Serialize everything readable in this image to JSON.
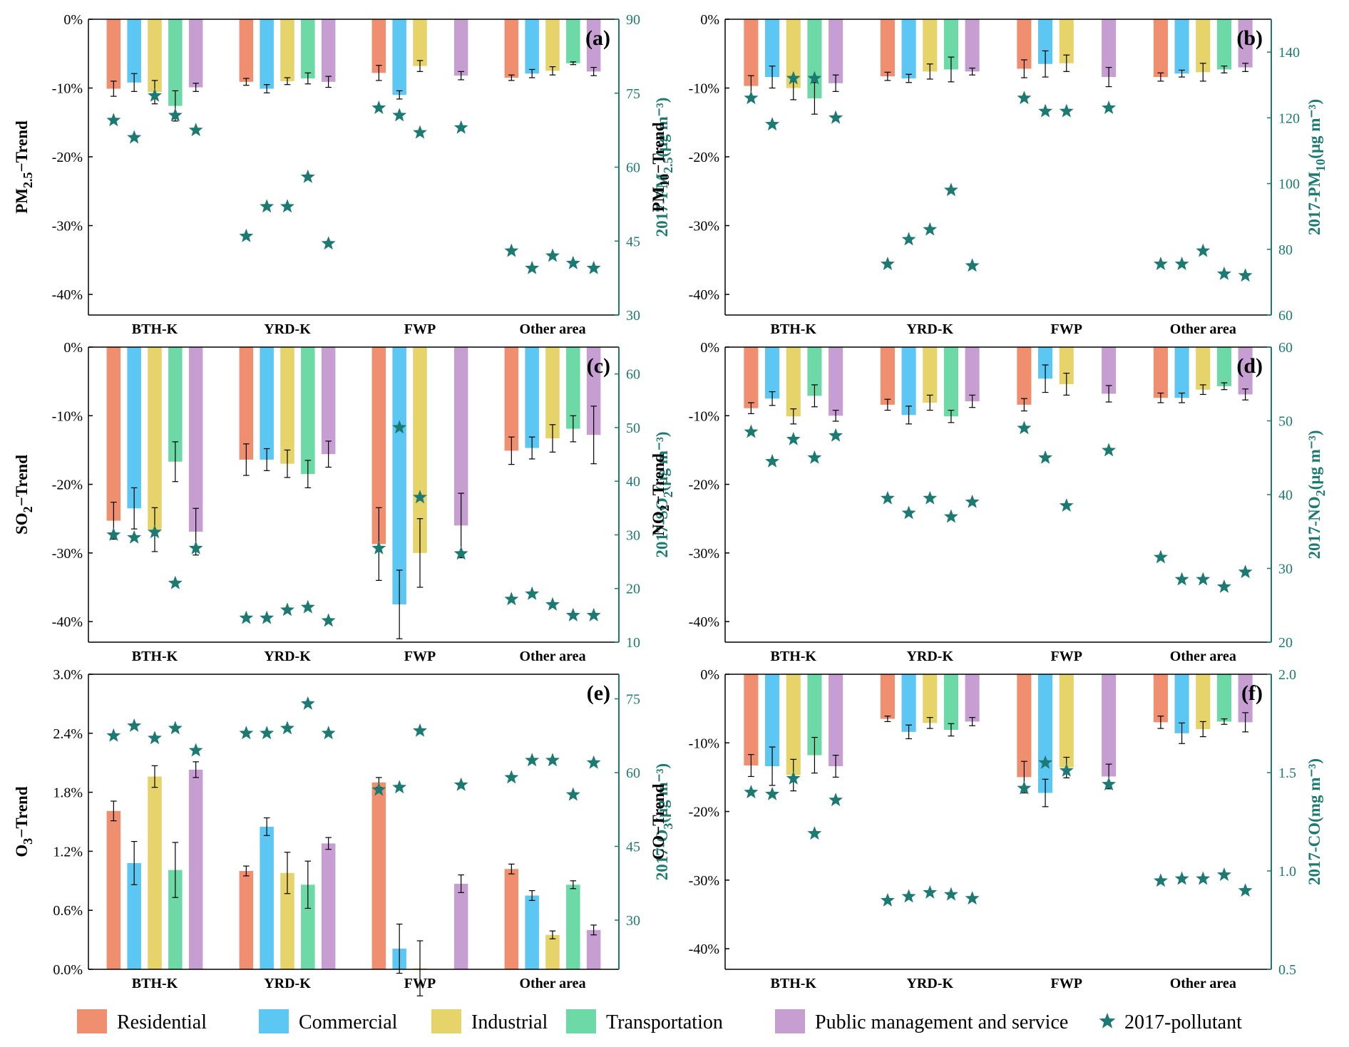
{
  "colors": {
    "series": [
      "#F08E70",
      "#5CC7F2",
      "#E6D36A",
      "#6DD9A6",
      "#C79ED2"
    ],
    "pollutant": "#1D7A72",
    "axis": "#000000"
  },
  "legend": {
    "items": [
      "Residential",
      "Commercial",
      "Industrial",
      "Transportation",
      "Public management and service",
      "2017-pollutant"
    ]
  },
  "chart_data": [
    {
      "type": "bar",
      "panel": "(a)",
      "ylabel_main": "PM",
      "ylabel_sub": "2.5",
      "ylabel_tail": "−Trend",
      "y2label_main": "2017-PM",
      "y2label_sub": "2.5",
      "y2label_tail": "(μg m⁻³)",
      "categories": [
        "BTH-K",
        "YRD-K",
        "FWP",
        "Other area"
      ],
      "ylim": [
        -43,
        0
      ],
      "yticks": [
        0,
        -10,
        -20,
        -30,
        -40
      ],
      "ytick_labels": [
        "0%",
        "-10%",
        "-20%",
        "-30%",
        "-40%"
      ],
      "y2lim": [
        30,
        90
      ],
      "y2ticks": [
        30,
        45,
        60,
        75,
        90
      ],
      "y2tick_labels": [
        "30",
        "45",
        "60",
        "75",
        "90"
      ],
      "series": [
        {
          "name": "Residential",
          "values": [
            -10.1,
            -9.1,
            -7.8,
            -8.5
          ],
          "errors": [
            1.1,
            0.5,
            1.1,
            0.4
          ]
        },
        {
          "name": "Commercial",
          "values": [
            -9.2,
            -10.1,
            -11.0,
            -7.9
          ],
          "errors": [
            1.3,
            0.6,
            0.6,
            0.6
          ]
        },
        {
          "name": "Industrial",
          "values": [
            -10.6,
            -9.0,
            -6.8,
            -7.5
          ],
          "errors": [
            1.7,
            0.5,
            0.8,
            0.6
          ]
        },
        {
          "name": "Transportation",
          "values": [
            -12.6,
            -8.6,
            null,
            -6.4
          ],
          "errors": [
            2.2,
            0.8,
            null,
            0.2
          ]
        },
        {
          "name": "Public management and service",
          "values": [
            -9.9,
            -9.1,
            -8.2,
            -7.6
          ],
          "errors": [
            0.6,
            0.8,
            0.6,
            0.6
          ]
        }
      ],
      "pollutant": [
        [
          69.5,
          66.0,
          74.5,
          70.5,
          67.5
        ],
        [
          46.0,
          52.0,
          52.0,
          58.0,
          44.5
        ],
        [
          72.0,
          70.5,
          67.0,
          null,
          68.0
        ],
        [
          43.0,
          39.5,
          42.0,
          40.5,
          39.5
        ]
      ]
    },
    {
      "type": "bar",
      "panel": "(b)",
      "ylabel_main": "PM",
      "ylabel_sub": "10",
      "ylabel_tail": "−Trend",
      "y2label_main": "2017-PM",
      "y2label_sub": "10",
      "y2label_tail": "(μg m⁻³)",
      "categories": [
        "BTH-K",
        "YRD-K",
        "FWP",
        "Other area"
      ],
      "ylim": [
        -43,
        0
      ],
      "yticks": [
        0,
        -10,
        -20,
        -30,
        -40
      ],
      "ytick_labels": [
        "0%",
        "-10%",
        "-20%",
        "-30%",
        "-40%"
      ],
      "y2lim": [
        60,
        150
      ],
      "y2ticks": [
        60,
        80,
        100,
        120,
        140
      ],
      "y2tick_labels": [
        "60",
        "80",
        "100",
        "120",
        "140"
      ],
      "series": [
        {
          "name": "Residential",
          "values": [
            -9.7,
            -8.3,
            -7.2,
            -8.4
          ],
          "errors": [
            1.5,
            0.6,
            1.3,
            0.6
          ]
        },
        {
          "name": "Commercial",
          "values": [
            -8.4,
            -8.6,
            -6.5,
            -7.9
          ],
          "errors": [
            1.6,
            0.6,
            1.9,
            0.5
          ]
        },
        {
          "name": "Industrial",
          "values": [
            -10.0,
            -7.6,
            -6.4,
            -7.7
          ],
          "errors": [
            1.7,
            1.1,
            1.2,
            1.3
          ]
        },
        {
          "name": "Transportation",
          "values": [
            -11.5,
            -7.3,
            null,
            -7.3
          ],
          "errors": [
            2.3,
            1.8,
            null,
            0.5
          ]
        },
        {
          "name": "Public management and service",
          "values": [
            -9.3,
            -7.6,
            -8.4,
            -7.0
          ],
          "errors": [
            1.2,
            0.5,
            1.4,
            0.6
          ]
        }
      ],
      "pollutant": [
        [
          126.0,
          118.0,
          132.0,
          132.0,
          120.0
        ],
        [
          75.5,
          83.0,
          86.0,
          98.0,
          75.0
        ],
        [
          126.0,
          122.0,
          122.0,
          null,
          123.0
        ],
        [
          75.5,
          75.5,
          79.5,
          72.5,
          72.0
        ]
      ]
    },
    {
      "type": "bar",
      "panel": "(c)",
      "ylabel_main": "SO",
      "ylabel_sub": "2",
      "ylabel_tail": "−Trend",
      "y2label_main": "2017-SO",
      "y2label_sub": "2",
      "y2label_tail": "(μg m⁻³)",
      "categories": [
        "BTH-K",
        "YRD-K",
        "FWP",
        "Other area"
      ],
      "ylim": [
        -43,
        0
      ],
      "yticks": [
        0,
        -10,
        -20,
        -30,
        -40
      ],
      "ytick_labels": [
        "0%",
        "-10%",
        "-20%",
        "-30%",
        "-40%"
      ],
      "y2lim": [
        10,
        65
      ],
      "y2ticks": [
        10,
        20,
        30,
        40,
        50,
        60
      ],
      "y2tick_labels": [
        "10",
        "20",
        "30",
        "40",
        "50",
        "60"
      ],
      "series": [
        {
          "name": "Residential",
          "values": [
            -25.3,
            -16.4,
            -28.7,
            -15.1
          ],
          "errors": [
            2.7,
            2.3,
            5.3,
            2.0
          ]
        },
        {
          "name": "Commercial",
          "values": [
            -23.5,
            -16.4,
            -37.5,
            -14.7
          ],
          "errors": [
            3.0,
            1.6,
            5.0,
            1.6
          ]
        },
        {
          "name": "Industrial",
          "values": [
            -26.6,
            -17.0,
            -30.0,
            -13.3
          ],
          "errors": [
            3.2,
            2.0,
            5.0,
            2.0
          ]
        },
        {
          "name": "Transportation",
          "values": [
            -16.7,
            -18.5,
            null,
            -11.9
          ],
          "errors": [
            2.9,
            2.0,
            null,
            1.9
          ]
        },
        {
          "name": "Public management and service",
          "values": [
            -26.9,
            -15.6,
            -26.0,
            -12.8
          ],
          "errors": [
            3.4,
            1.9,
            4.7,
            4.2
          ]
        }
      ],
      "pollutant": [
        [
          30.0,
          29.5,
          30.5,
          21.0,
          27.5
        ],
        [
          14.5,
          14.5,
          16.0,
          16.5,
          14.0
        ],
        [
          27.5,
          50.0,
          37.0,
          null,
          26.5
        ],
        [
          18.0,
          19.0,
          17.0,
          15.0,
          15.0
        ]
      ]
    },
    {
      "type": "bar",
      "panel": "(d)",
      "ylabel_main": "NO",
      "ylabel_sub": "2",
      "ylabel_tail": "−Trend",
      "y2label_main": "2017-NO",
      "y2label_sub": "2",
      "y2label_tail": "(μg m⁻³)",
      "categories": [
        "BTH-K",
        "YRD-K",
        "FWP",
        "Other area"
      ],
      "ylim": [
        -43,
        0
      ],
      "yticks": [
        0,
        -10,
        -20,
        -30,
        -40
      ],
      "ytick_labels": [
        "0%",
        "-10%",
        "-20%",
        "-30%",
        "-40%"
      ],
      "y2lim": [
        20,
        60
      ],
      "y2ticks": [
        20,
        30,
        40,
        50,
        60
      ],
      "y2tick_labels": [
        "20",
        "30",
        "40",
        "50",
        "60"
      ],
      "series": [
        {
          "name": "Residential",
          "values": [
            -8.9,
            -8.4,
            -8.4,
            -7.4
          ],
          "errors": [
            0.8,
            0.8,
            0.9,
            0.7
          ]
        },
        {
          "name": "Commercial",
          "values": [
            -7.5,
            -9.9,
            -4.6,
            -7.4
          ],
          "errors": [
            1.0,
            1.3,
            2.0,
            0.7
          ]
        },
        {
          "name": "Industrial",
          "values": [
            -10.1,
            -8.1,
            -5.4,
            -6.2
          ],
          "errors": [
            1.1,
            1.1,
            1.6,
            0.7
          ]
        },
        {
          "name": "Transportation",
          "values": [
            -7.1,
            -10.1,
            null,
            -5.7
          ],
          "errors": [
            1.6,
            0.9,
            null,
            0.5
          ]
        },
        {
          "name": "Public management and service",
          "values": [
            -10.0,
            -7.9,
            -6.8,
            -6.9
          ],
          "errors": [
            0.8,
            0.9,
            1.2,
            0.8
          ]
        }
      ],
      "pollutant": [
        [
          48.5,
          44.5,
          47.5,
          45.0,
          48.0
        ],
        [
          39.5,
          37.5,
          39.5,
          37.0,
          39.0
        ],
        [
          49.0,
          45.0,
          38.5,
          null,
          46.0
        ],
        [
          31.5,
          28.5,
          28.5,
          27.5,
          29.5
        ]
      ]
    },
    {
      "type": "bar",
      "panel": "(e)",
      "ylabel_main": "O",
      "ylabel_sub": "3",
      "ylabel_tail": "−Trend",
      "y2label_main": "2017-O",
      "y2label_sub": "3",
      "y2label_tail": "(μg m⁻³)",
      "categories": [
        "BTH-K",
        "YRD-K",
        "FWP",
        "Other area"
      ],
      "ylim": [
        0,
        3.0
      ],
      "yticks": [
        0,
        0.6,
        1.2,
        1.8,
        2.4,
        3.0
      ],
      "ytick_labels": [
        "0.0%",
        "0.6%",
        "1.2%",
        "1.8%",
        "2.4%",
        "3.0%"
      ],
      "y2lim": [
        20,
        80
      ],
      "y2ticks": [
        30,
        45,
        60,
        75
      ],
      "y2tick_labels": [
        "30",
        "45",
        "60",
        "75"
      ],
      "series": [
        {
          "name": "Residential",
          "values": [
            1.61,
            1.0,
            1.9,
            1.02
          ],
          "errors": [
            0.1,
            0.05,
            0.05,
            0.05
          ]
        },
        {
          "name": "Commercial",
          "values": [
            1.08,
            1.45,
            0.21,
            0.75
          ],
          "errors": [
            0.22,
            0.09,
            0.25,
            0.05
          ]
        },
        {
          "name": "Industrial",
          "values": [
            1.96,
            0.98,
            0.01,
            0.35
          ],
          "errors": [
            0.11,
            0.21,
            0.28,
            0.04
          ]
        },
        {
          "name": "Transportation",
          "values": [
            1.01,
            0.86,
            null,
            0.86
          ],
          "errors": [
            0.28,
            0.24,
            null,
            0.04
          ]
        },
        {
          "name": "Public management and service",
          "values": [
            2.03,
            1.28,
            0.87,
            0.4
          ],
          "errors": [
            0.08,
            0.06,
            0.09,
            0.05
          ]
        }
      ],
      "pollutant": [
        [
          67.5,
          69.5,
          67.0,
          69.0,
          64.5
        ],
        [
          68.0,
          68.0,
          69.0,
          74.0,
          68.0
        ],
        [
          56.5,
          57.0,
          68.5,
          null,
          57.5
        ],
        [
          59.0,
          62.5,
          62.5,
          55.5,
          62.0
        ]
      ]
    },
    {
      "type": "bar",
      "panel": "(f)",
      "ylabel_main": "CO",
      "ylabel_sub": "",
      "ylabel_tail": "−Trend",
      "y2label_main": "2017-CO",
      "y2label_sub": "",
      "y2label_tail": "(mg m⁻³)",
      "categories": [
        "BTH-K",
        "YRD-K",
        "FWP",
        "Other area"
      ],
      "ylim": [
        -43,
        0
      ],
      "yticks": [
        0,
        -10,
        -20,
        -30,
        -40
      ],
      "ytick_labels": [
        "0%",
        "-10%",
        "-20%",
        "-30%",
        "-40%"
      ],
      "y2lim": [
        0.5,
        2.0
      ],
      "y2ticks": [
        0.5,
        1.0,
        1.5,
        2.0
      ],
      "y2tick_labels": [
        "0.5",
        "1.0",
        "1.5",
        "2.0"
      ],
      "series": [
        {
          "name": "Residential",
          "values": [
            -13.3,
            -6.5,
            -15.0,
            -7.0
          ],
          "errors": [
            1.6,
            0.4,
            2.3,
            0.9
          ]
        },
        {
          "name": "Commercial",
          "values": [
            -13.4,
            -8.4,
            -17.3,
            -8.6
          ],
          "errors": [
            2.8,
            1.0,
            2.0,
            1.5
          ]
        },
        {
          "name": "Industrial",
          "values": [
            -14.7,
            -7.1,
            -13.6,
            -8.0
          ],
          "errors": [
            2.3,
            0.8,
            1.5,
            1.1
          ]
        },
        {
          "name": "Transportation",
          "values": [
            -11.8,
            -8.1,
            null,
            -6.9
          ],
          "errors": [
            2.6,
            0.9,
            null,
            0.4
          ]
        },
        {
          "name": "Public management and service",
          "values": [
            -13.4,
            -6.9,
            -14.9,
            -7.0
          ],
          "errors": [
            1.6,
            0.6,
            1.8,
            1.4
          ]
        }
      ],
      "pollutant": [
        [
          1.4,
          1.39,
          1.47,
          1.19,
          1.36
        ],
        [
          0.85,
          0.87,
          0.89,
          0.88,
          0.86
        ],
        [
          1.42,
          1.55,
          1.51,
          null,
          1.44
        ],
        [
          0.95,
          0.96,
          0.96,
          0.98,
          0.9
        ]
      ]
    }
  ]
}
